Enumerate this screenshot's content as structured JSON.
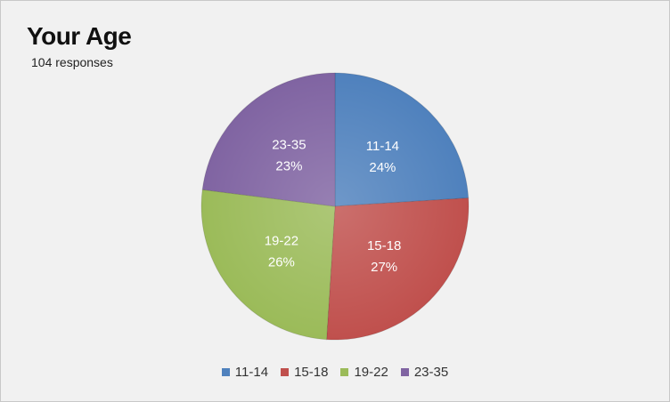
{
  "chart_data": {
    "type": "pie",
    "title": "Your Age",
    "subtitle": "104 responses",
    "categories": [
      "11-14",
      "15-18",
      "19-22",
      "23-35"
    ],
    "values": [
      24,
      27,
      26,
      23
    ],
    "labels": [
      "24%",
      "27%",
      "26%",
      "23%"
    ],
    "colors": [
      "#4f81bd",
      "#c0504d",
      "#9bbb59",
      "#8064a2"
    ],
    "legend_position": "bottom",
    "start": "12 o'clock, clockwise"
  }
}
